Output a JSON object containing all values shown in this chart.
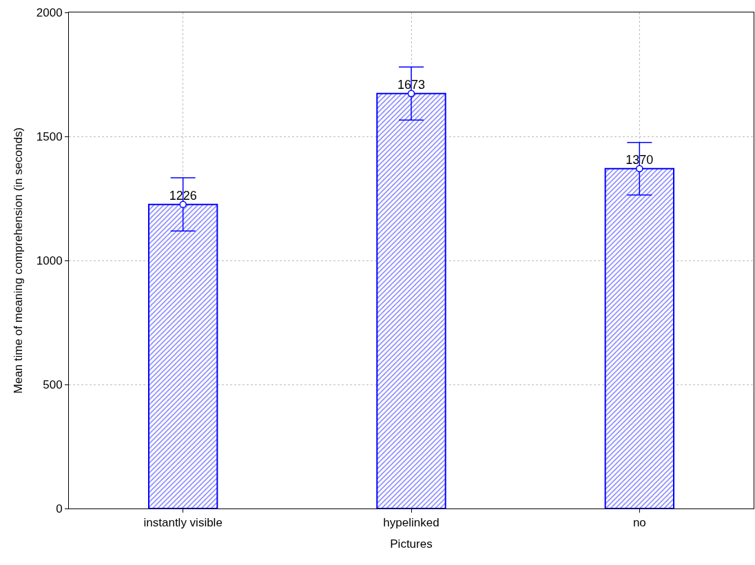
{
  "chart_data": {
    "type": "bar",
    "xlabel": "Pictures",
    "ylabel": "Mean time of meaning comprehension (in seconds)",
    "categories": [
      "instantly visible",
      "hypelinked",
      "no"
    ],
    "series": [
      {
        "color": "#0000ff",
        "values": [
          1226,
          1673,
          1370
        ],
        "errors": [
          107,
          107,
          106
        ],
        "value_labels": [
          "1226",
          "1673",
          "1370"
        ]
      },
      {
        "type": "scatter",
        "color": "#0000ff",
        "x": [
          "instantly visible",
          "hypelinked",
          "no"
        ],
        "values": [
          1226,
          1673,
          1370
        ]
      }
    ],
    "marker": "circle",
    "ylim": [
      0,
      2000
    ],
    "yticks": [
      0,
      500,
      1000,
      1500,
      2000
    ],
    "grid": true
  }
}
